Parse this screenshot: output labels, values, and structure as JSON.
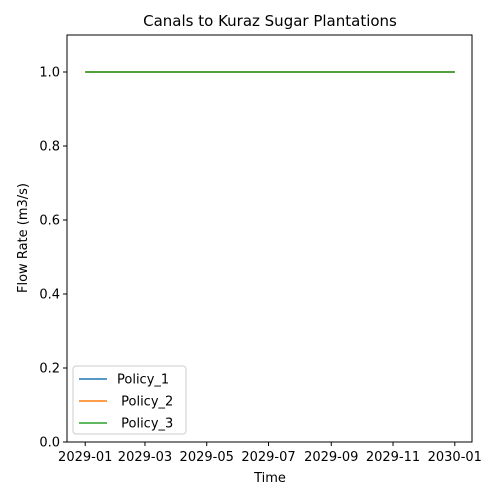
{
  "chart_data": {
    "type": "line",
    "title": "Canals to Kuraz Sugar Plantations",
    "xlabel": "Time",
    "ylabel": "Flow Rate (m3/s)",
    "x": [
      "2029-01-01",
      "2030-01-01"
    ],
    "xticks": [
      "2029-01",
      "2029-03",
      "2029-05",
      "2029-07",
      "2029-09",
      "2029-11",
      "2030-01"
    ],
    "yticks": [
      "0.0",
      "0.2",
      "0.4",
      "0.6",
      "0.8",
      "1.0"
    ],
    "ylim": [
      0.0,
      1.1
    ],
    "xlim": [
      "2028-12-14",
      "2030-01-18"
    ],
    "grid": false,
    "legend_position": "lower-left",
    "series": [
      {
        "name": "Policy_1",
        "values": [
          1.0,
          1.0
        ],
        "color": "#1f77b4"
      },
      {
        "name": " Policy_2",
        "values": [
          1.0,
          1.0
        ],
        "color": "#ff7f0e"
      },
      {
        "name": " Policy_3",
        "values": [
          1.0,
          1.0
        ],
        "color": "#2ca02c"
      }
    ]
  }
}
